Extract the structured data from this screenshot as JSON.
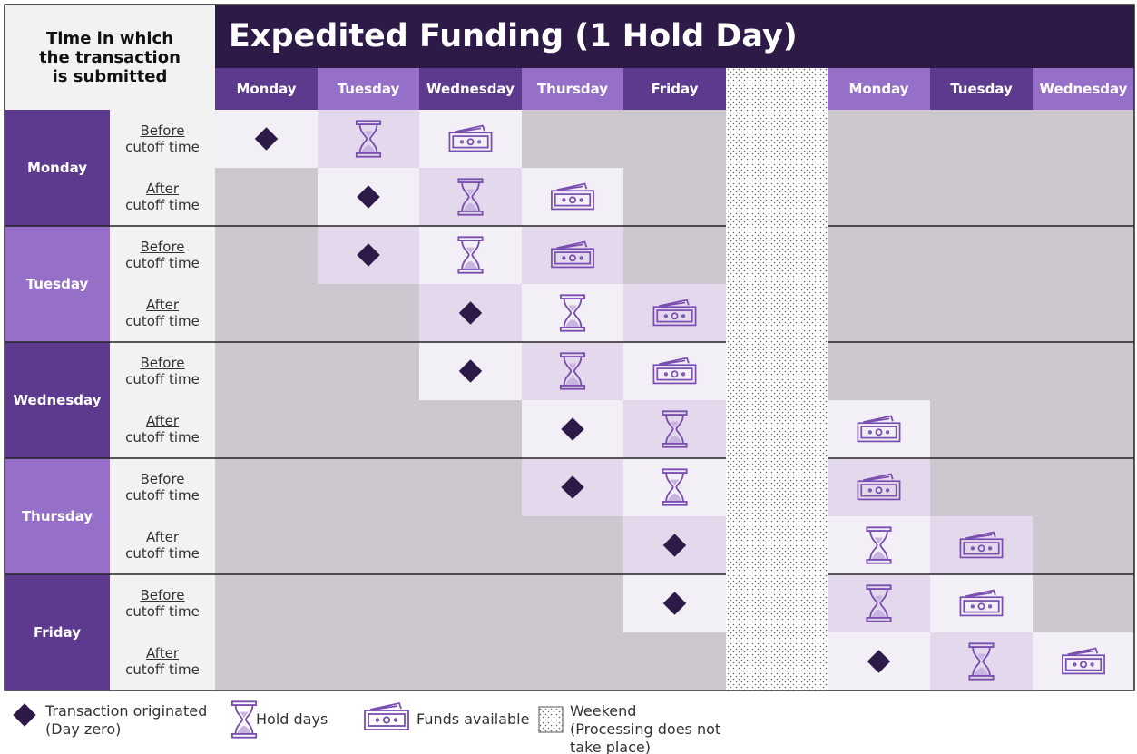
{
  "header": {
    "corner_label": "Time in which the transaction is submitted",
    "title": "Expedited Funding (1 Hold Day)"
  },
  "columns": [
    "Monday",
    "Tuesday",
    "Wednesday",
    "Thursday",
    "Friday",
    "Monday",
    "Tuesday",
    "Wednesday"
  ],
  "rows": [
    {
      "day": "Monday",
      "slots": [
        {
          "timing": "Before",
          "label": "cutoff time"
        },
        {
          "timing": "After",
          "label": "cutoff time"
        }
      ]
    },
    {
      "day": "Tuesday",
      "slots": [
        {
          "timing": "Before",
          "label": "cutoff time"
        },
        {
          "timing": "After",
          "label": "cutoff time"
        }
      ]
    },
    {
      "day": "Wednesday",
      "slots": [
        {
          "timing": "Before",
          "label": "cutoff time"
        },
        {
          "timing": "After",
          "label": "cutoff time"
        }
      ]
    },
    {
      "day": "Thursday",
      "slots": [
        {
          "timing": "Before",
          "label": "cutoff time"
        },
        {
          "timing": "After",
          "label": "cutoff time"
        }
      ]
    },
    {
      "day": "Friday",
      "slots": [
        {
          "timing": "Before",
          "label": "cutoff time"
        },
        {
          "timing": "After",
          "label": "cutoff time"
        }
      ]
    }
  ],
  "legend": {
    "origin": "Transaction originated (Day zero)",
    "hold": "Hold days",
    "funds": "Funds available",
    "weekend": "Weekend (Processing does not take place)"
  }
}
